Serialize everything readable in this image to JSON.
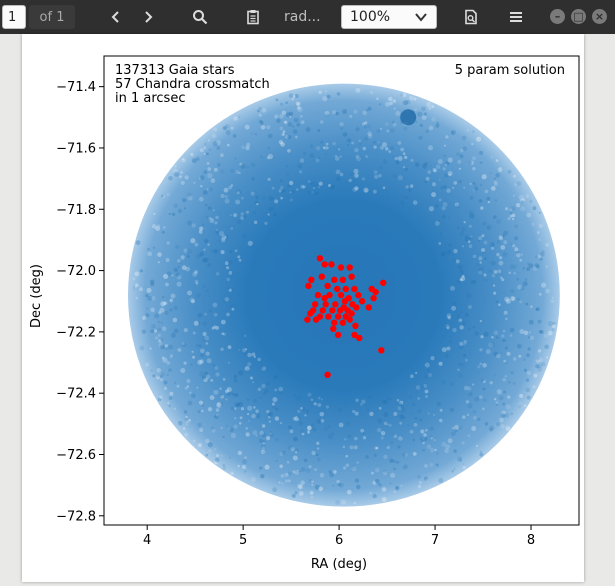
{
  "toolbar": {
    "page_value": "1",
    "page_count": "of 1",
    "document_title": "rad...",
    "zoom": "100%",
    "icons": [
      "chevron-left-icon",
      "chevron-right-icon",
      "search-icon",
      "clipboard-icon",
      "chevron-down-icon",
      "document-search-icon",
      "hamburger-menu-icon",
      "minimize-icon",
      "maximize-icon",
      "close-icon"
    ]
  },
  "figure": {
    "annotation_left": [
      "137313 Gaia stars",
      "57 Chandra crossmatch",
      "in 1 arcsec"
    ],
    "annotation_right": "5 param solution",
    "colors": {
      "gaia": "#1f77b4",
      "chandra": "#ff0000"
    }
  },
  "chart_data": {
    "type": "scatter",
    "xlabel": "RA (deg)",
    "ylabel": "Dec (deg)",
    "xlim": [
      3.55,
      8.5
    ],
    "ylim": [
      -72.83,
      -71.3
    ],
    "xticks": [
      4,
      5,
      6,
      7,
      8
    ],
    "yticks": [
      -71.4,
      -71.6,
      -71.8,
      -72.0,
      -72.2,
      -72.4,
      -72.6,
      -72.8
    ],
    "ytick_labels": [
      "−71.4",
      "−71.6",
      "−71.8",
      "−72.0",
      "−72.2",
      "−72.4",
      "−72.6",
      "−72.8"
    ],
    "grid": false,
    "series": [
      {
        "name": "Gaia stars",
        "kind": "dense field",
        "count": 137313,
        "center": [
          6.05,
          -72.08
        ],
        "radius_ra": 2.25,
        "radius_dec": 0.69
      },
      {
        "name": "Chandra crossmatch",
        "count": 57,
        "points": [
          [
            5.8,
            -71.96
          ],
          [
            5.85,
            -71.98
          ],
          [
            5.92,
            -71.98
          ],
          [
            6.02,
            -71.99
          ],
          [
            6.11,
            -71.99
          ],
          [
            5.71,
            -72.03
          ],
          [
            5.82,
            -72.02
          ],
          [
            5.95,
            -72.03
          ],
          [
            6.04,
            -72.03
          ],
          [
            6.13,
            -72.02
          ],
          [
            5.68,
            -72.05
          ],
          [
            5.88,
            -72.05
          ],
          [
            5.98,
            -72.06
          ],
          [
            6.07,
            -72.06
          ],
          [
            6.16,
            -72.06
          ],
          [
            6.46,
            -72.04
          ],
          [
            5.78,
            -72.08
          ],
          [
            5.9,
            -72.08
          ],
          [
            6.02,
            -72.08
          ],
          [
            6.1,
            -72.09
          ],
          [
            6.2,
            -72.08
          ],
          [
            6.34,
            -72.06
          ],
          [
            6.38,
            -72.07
          ],
          [
            5.75,
            -72.11
          ],
          [
            5.86,
            -72.11
          ],
          [
            5.96,
            -72.11
          ],
          [
            6.06,
            -72.1
          ],
          [
            6.14,
            -72.11
          ],
          [
            6.24,
            -72.1
          ],
          [
            6.36,
            -72.09
          ],
          [
            5.73,
            -72.13
          ],
          [
            5.83,
            -72.13
          ],
          [
            5.93,
            -72.13
          ],
          [
            6.01,
            -72.13
          ],
          [
            6.09,
            -72.13
          ],
          [
            6.18,
            -72.12
          ],
          [
            6.31,
            -72.12
          ],
          [
            5.7,
            -72.14
          ],
          [
            5.8,
            -72.15
          ],
          [
            5.89,
            -72.15
          ],
          [
            5.99,
            -72.15
          ],
          [
            6.07,
            -72.15
          ],
          [
            6.13,
            -72.14
          ],
          [
            5.76,
            -72.16
          ],
          [
            5.95,
            -72.17
          ],
          [
            6.04,
            -72.17
          ],
          [
            6.11,
            -72.16
          ],
          [
            6.17,
            -72.18
          ],
          [
            5.67,
            -72.16
          ],
          [
            5.99,
            -72.21
          ],
          [
            6.16,
            -72.21
          ],
          [
            6.21,
            -72.22
          ],
          [
            5.94,
            -72.19
          ],
          [
            6.05,
            -72.12
          ],
          [
            6.44,
            -72.26
          ],
          [
            5.88,
            -72.34
          ],
          [
            5.85,
            -72.09
          ]
        ]
      }
    ]
  }
}
